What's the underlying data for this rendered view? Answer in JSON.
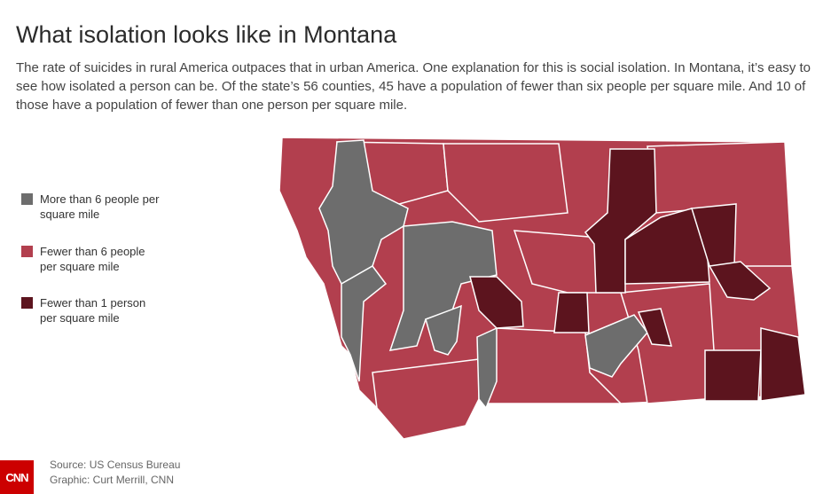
{
  "header": {
    "title": "What isolation looks like in Montana",
    "description": "The rate of suicides in rural America outpaces that in urban America. One explanation for this is social isolation. In Montana, it’s easy to see how isolated a person can be. Of the state’s 56 counties, 45 have a population of fewer than six people per square mile. And 10 of those have a population of fewer than one person per square mile."
  },
  "legend": {
    "items": [
      {
        "label": "More than 6 people per square mile",
        "color": "#6d6d6d"
      },
      {
        "label": "Fewer than 6 people per square mile",
        "color": "#b23f4e"
      },
      {
        "label": "Fewer than 1 person per square mile",
        "color": "#5c141e"
      }
    ]
  },
  "footer": {
    "source": "Source: US Census Bureau",
    "credit": "Graphic: Curt Merrill, CNN",
    "logo": "CNN"
  }
}
